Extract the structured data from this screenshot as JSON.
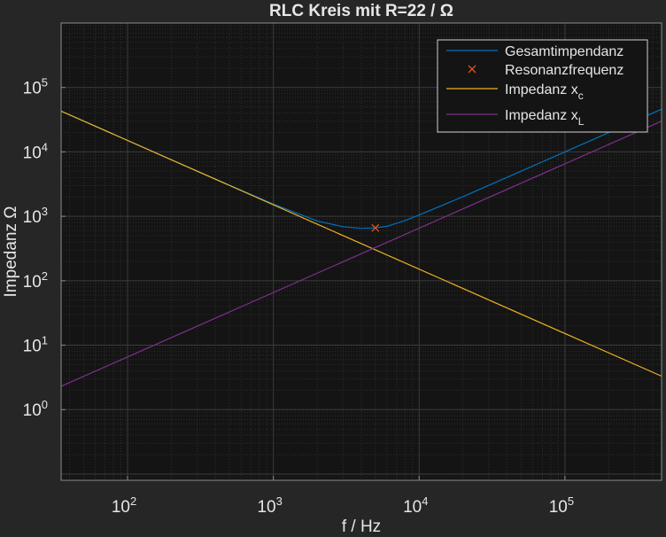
{
  "chart_data": {
    "type": "line",
    "title": "RLC Kreis mit R=22 / Ω",
    "xlabel": "f / Hz",
    "ylabel": "Impedanz Ω",
    "x_scale": "log",
    "y_scale": "log",
    "xlim": [
      35,
      460000
    ],
    "ylim": [
      0.08,
      1000000
    ],
    "x_ticks": [
      {
        "value": 100,
        "base": "10",
        "exp": "2"
      },
      {
        "value": 1000,
        "base": "10",
        "exp": "3"
      },
      {
        "value": 10000,
        "base": "10",
        "exp": "4"
      },
      {
        "value": 100000,
        "base": "10",
        "exp": "5"
      }
    ],
    "y_ticks": [
      {
        "value": 1,
        "base": "10",
        "exp": "0"
      },
      {
        "value": 10,
        "base": "10",
        "exp": "1"
      },
      {
        "value": 100,
        "base": "10",
        "exp": "2"
      },
      {
        "value": 1000,
        "base": "10",
        "exp": "3"
      },
      {
        "value": 10000,
        "base": "10",
        "exp": "4"
      },
      {
        "value": 100000,
        "base": "10",
        "exp": "5"
      }
    ],
    "grid": true,
    "minor_grid": true,
    "legend_position": "top-right",
    "background": "#141414",
    "series": [
      {
        "name": "Gesamtimpendanz",
        "legend_main": "Gesamtimpendanz",
        "legend_sub": "",
        "kind": "line",
        "color": "#0072bd",
        "x": [
          35,
          100,
          300,
          1000,
          2000,
          3000,
          4000,
          5000,
          6000,
          8000,
          10000,
          20000,
          50000,
          100000,
          460000
        ],
        "y": [
          43000,
          15100,
          5020,
          1550,
          845,
          690,
          650,
          660,
          700,
          860,
          1050,
          2020,
          5010,
          10010,
          46000
        ]
      },
      {
        "name": "Resonanzfrequenz",
        "legend_main": "Resonanzfrequenz",
        "legend_sub": "",
        "kind": "marker",
        "color": "#d95319",
        "x": [
          5000
        ],
        "y": [
          660
        ]
      },
      {
        "name": "Impedanz x_c",
        "legend_main": "Impedanz x",
        "legend_sub": "c",
        "kind": "line",
        "color": "#edb120",
        "x": [
          35,
          460000
        ],
        "y": [
          43000,
          3.3
        ]
      },
      {
        "name": "Impedanz x_L",
        "legend_main": "Impedanz x",
        "legend_sub": "L",
        "kind": "line",
        "color": "#7e2f8e",
        "x": [
          35,
          460000
        ],
        "y": [
          2.3,
          30000
        ]
      }
    ]
  }
}
